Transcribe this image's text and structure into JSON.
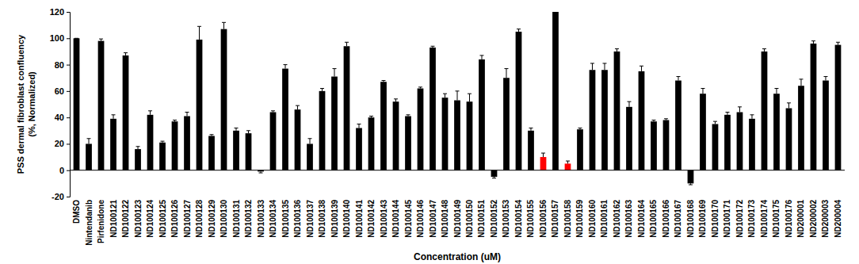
{
  "chart_data": {
    "type": "bar",
    "y_label": [
      "PSS  dermal fibroblast confluency",
      "(%, Normalized)"
    ],
    "x_label": "Concentration (uM)",
    "categories": [
      "DMSO",
      "Nintendanib",
      "Pirfenidone",
      "ND100121",
      "ND100122",
      "ND100123",
      "ND100124",
      "ND100125",
      "ND100126",
      "ND100127",
      "ND100128",
      "ND100129",
      "ND100130",
      "ND100131",
      "ND100132",
      "ND100133",
      "ND100134",
      "ND100135",
      "ND100136",
      "ND100137",
      "ND100138",
      "ND100139",
      "ND100140",
      "ND100141",
      "ND100142",
      "ND100143",
      "ND100144",
      "ND100145",
      "ND100146",
      "ND100147",
      "ND100148",
      "ND100149",
      "ND100150",
      "ND100151",
      "ND100152",
      "ND100153",
      "ND100154",
      "ND100155",
      "ND100156",
      "ND100157",
      "ND100158",
      "ND100159",
      "ND100160",
      "ND100161",
      "ND100162",
      "ND100163",
      "ND100164",
      "ND100165",
      "ND100166",
      "ND100167",
      "ND100168",
      "ND100169",
      "ND100170",
      "ND100171",
      "ND100172",
      "ND100173",
      "ND100174",
      "ND100175",
      "ND100176",
      "ND200001",
      "ND200002",
      "ND200003",
      "ND200004"
    ],
    "values": [
      100,
      20,
      98,
      39,
      87,
      16,
      42,
      21,
      37,
      41,
      99,
      26,
      107,
      30,
      28,
      -1,
      44,
      77,
      46,
      20,
      60,
      71,
      94,
      32,
      40,
      67,
      52,
      41,
      62,
      93,
      55,
      53,
      52,
      84,
      -5,
      70,
      105,
      30,
      10,
      120,
      5,
      31,
      76,
      76,
      90,
      48,
      75,
      37,
      38,
      68,
      -10,
      58,
      35,
      42,
      44,
      39,
      90,
      58,
      47,
      64,
      96,
      68,
      95
    ],
    "errors": [
      0,
      4,
      1.5,
      3,
      2,
      2,
      3,
      1,
      1,
      3,
      10,
      1,
      5,
      2,
      2,
      1,
      1,
      3,
      3,
      4,
      2,
      6,
      3,
      3,
      1,
      1,
      2,
      1,
      1,
      1,
      3,
      7,
      6,
      3,
      1,
      7,
      2,
      2,
      3,
      0,
      2,
      1,
      5,
      5,
      2,
      4,
      4,
      1,
      1,
      3,
      1,
      4,
      2,
      2,
      4,
      3,
      2,
      4,
      4,
      5,
      2,
      3,
      2
    ],
    "colors": [
      "#000000",
      "#000000",
      "#000000",
      "#000000",
      "#000000",
      "#000000",
      "#000000",
      "#000000",
      "#000000",
      "#000000",
      "#000000",
      "#000000",
      "#000000",
      "#000000",
      "#000000",
      "#000000",
      "#000000",
      "#000000",
      "#000000",
      "#000000",
      "#000000",
      "#000000",
      "#000000",
      "#000000",
      "#000000",
      "#000000",
      "#000000",
      "#000000",
      "#000000",
      "#000000",
      "#000000",
      "#000000",
      "#000000",
      "#000000",
      "#000000",
      "#000000",
      "#000000",
      "#000000",
      "#ff0000",
      "#000000",
      "#ff0000",
      "#000000",
      "#000000",
      "#000000",
      "#000000",
      "#000000",
      "#000000",
      "#000000",
      "#000000",
      "#000000",
      "#000000",
      "#000000",
      "#000000",
      "#000000",
      "#000000",
      "#000000",
      "#000000",
      "#000000",
      "#000000",
      "#000000",
      "#000000",
      "#000000",
      "#000000"
    ],
    "ylim": [
      -20,
      120
    ],
    "yticks": [
      -20,
      0,
      20,
      40,
      60,
      80,
      100,
      120
    ],
    "grid": false
  }
}
